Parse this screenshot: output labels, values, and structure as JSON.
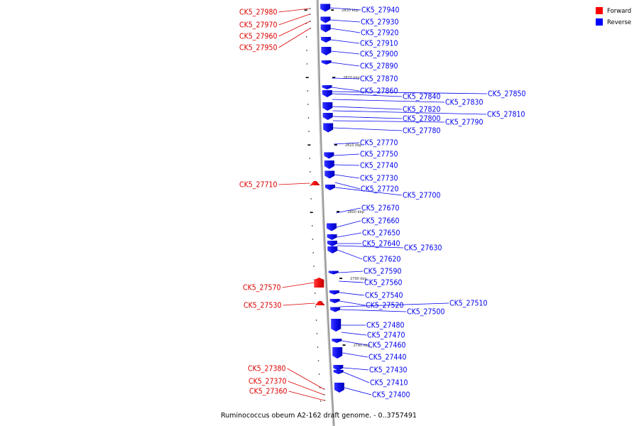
{
  "title": "Ruminococcus obeum A2-162 draft genome. - 0..3757491",
  "legend": [
    {
      "label": "Forward",
      "color": "#ff0000"
    },
    {
      "label": "Reverse",
      "color": "#0000ff"
    }
  ],
  "ticks": [
    {
      "label": "2830 kbp",
      "kbp": 2830
    },
    {
      "label": "2820 kbp",
      "kbp": 2820
    },
    {
      "label": "2810 kbp",
      "kbp": 2810
    },
    {
      "label": "2800 kbp",
      "kbp": 2800
    },
    {
      "label": "2790 kbp",
      "kbp": 2790
    },
    {
      "label": "2780 kbp",
      "kbp": 2780
    }
  ],
  "genes": [
    {
      "id": "CK5_27980",
      "strand": "forward"
    },
    {
      "id": "CK5_27970",
      "strand": "forward"
    },
    {
      "id": "CK5_27960",
      "strand": "forward"
    },
    {
      "id": "CK5_27950",
      "strand": "forward"
    },
    {
      "id": "CK5_27940",
      "strand": "reverse"
    },
    {
      "id": "CK5_27930",
      "strand": "reverse"
    },
    {
      "id": "CK5_27920",
      "strand": "reverse"
    },
    {
      "id": "CK5_27910",
      "strand": "reverse"
    },
    {
      "id": "CK5_27900",
      "strand": "reverse"
    },
    {
      "id": "CK5_27890",
      "strand": "reverse"
    },
    {
      "id": "CK5_27870",
      "strand": "reverse"
    },
    {
      "id": "CK5_27860",
      "strand": "reverse"
    },
    {
      "id": "CK5_27850",
      "strand": "reverse"
    },
    {
      "id": "CK5_27840",
      "strand": "reverse"
    },
    {
      "id": "CK5_27830",
      "strand": "reverse"
    },
    {
      "id": "CK5_27820",
      "strand": "reverse"
    },
    {
      "id": "CK5_27810",
      "strand": "reverse"
    },
    {
      "id": "CK5_27800",
      "strand": "reverse"
    },
    {
      "id": "CK5_27790",
      "strand": "reverse"
    },
    {
      "id": "CK5_27780",
      "strand": "reverse"
    },
    {
      "id": "CK5_27770",
      "strand": "reverse"
    },
    {
      "id": "CK5_27750",
      "strand": "reverse"
    },
    {
      "id": "CK5_27740",
      "strand": "reverse"
    },
    {
      "id": "CK5_27730",
      "strand": "reverse"
    },
    {
      "id": "CK5_27720",
      "strand": "reverse"
    },
    {
      "id": "CK5_27710",
      "strand": "forward"
    },
    {
      "id": "CK5_27700",
      "strand": "reverse"
    },
    {
      "id": "CK5_27670",
      "strand": "reverse"
    },
    {
      "id": "CK5_27660",
      "strand": "reverse"
    },
    {
      "id": "CK5_27650",
      "strand": "reverse"
    },
    {
      "id": "CK5_27640",
      "strand": "reverse"
    },
    {
      "id": "CK5_27630",
      "strand": "reverse"
    },
    {
      "id": "CK5_27620",
      "strand": "reverse"
    },
    {
      "id": "CK5_27590",
      "strand": "reverse"
    },
    {
      "id": "CK5_27570",
      "strand": "forward"
    },
    {
      "id": "CK5_27560",
      "strand": "reverse"
    },
    {
      "id": "CK5_27540",
      "strand": "reverse"
    },
    {
      "id": "CK5_27530",
      "strand": "forward"
    },
    {
      "id": "CK5_27520",
      "strand": "reverse"
    },
    {
      "id": "CK5_27510",
      "strand": "reverse"
    },
    {
      "id": "CK5_27500",
      "strand": "reverse"
    },
    {
      "id": "CK5_27480",
      "strand": "reverse"
    },
    {
      "id": "CK5_27470",
      "strand": "reverse"
    },
    {
      "id": "CK5_27460",
      "strand": "reverse"
    },
    {
      "id": "CK5_27440",
      "strand": "reverse"
    },
    {
      "id": "CK5_27430",
      "strand": "reverse"
    },
    {
      "id": "CK5_27410",
      "strand": "reverse"
    },
    {
      "id": "CK5_27400",
      "strand": "reverse"
    },
    {
      "id": "CK5_27380",
      "strand": "forward"
    },
    {
      "id": "CK5_27370",
      "strand": "forward"
    },
    {
      "id": "CK5_27360",
      "strand": "forward"
    }
  ]
}
